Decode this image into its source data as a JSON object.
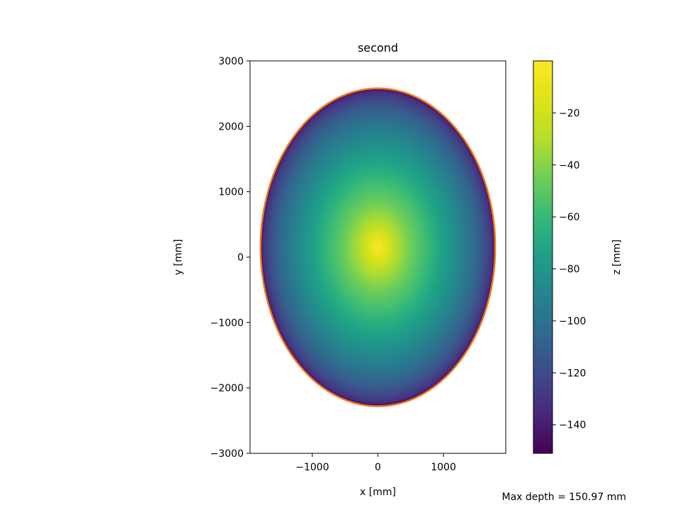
{
  "chart_data": {
    "type": "heatmap",
    "title": "second",
    "xlabel": "x [mm]",
    "ylabel": "y [mm]",
    "xlim": [
      -1950,
      1950
    ],
    "ylim": [
      -3000,
      3000
    ],
    "x_ticks": [
      -1000,
      0,
      1000
    ],
    "x_tick_labels": [
      "−1000",
      "0",
      "1000"
    ],
    "y_ticks": [
      3000,
      2000,
      1000,
      0,
      -1000,
      -2000,
      -3000
    ],
    "y_tick_labels": [
      "3000",
      "2000",
      "1000",
      "0",
      "−1000",
      "−2000",
      "−3000"
    ],
    "ellipse": {
      "center_x": 0,
      "center_y": 150,
      "semi_axis_x": 1790,
      "semi_axis_y": 2430,
      "outline_color": "#f07a1c"
    },
    "colorbar": {
      "label": "z [mm]",
      "min": -150.97,
      "max": 0,
      "colormap": "viridis",
      "ticks": [
        -20,
        -40,
        -60,
        -80,
        -100,
        -120,
        -140
      ],
      "tick_labels": [
        "−20",
        "−40",
        "−60",
        "−80",
        "−100",
        "−120",
        "−140"
      ]
    },
    "max_depth_value": 150.97,
    "annotation": "Max depth = 150.97 mm",
    "grid": false
  }
}
